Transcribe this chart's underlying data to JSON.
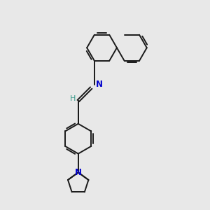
{
  "bg_color": "#e8e8e8",
  "bond_color": "#1a1a1a",
  "N_color": "#0000cc",
  "H_color": "#3a9a8a",
  "line_width": 1.4,
  "figsize": [
    3.0,
    3.0
  ],
  "dpi": 100,
  "xlim": [
    0,
    10
  ],
  "ylim": [
    0,
    10
  ]
}
